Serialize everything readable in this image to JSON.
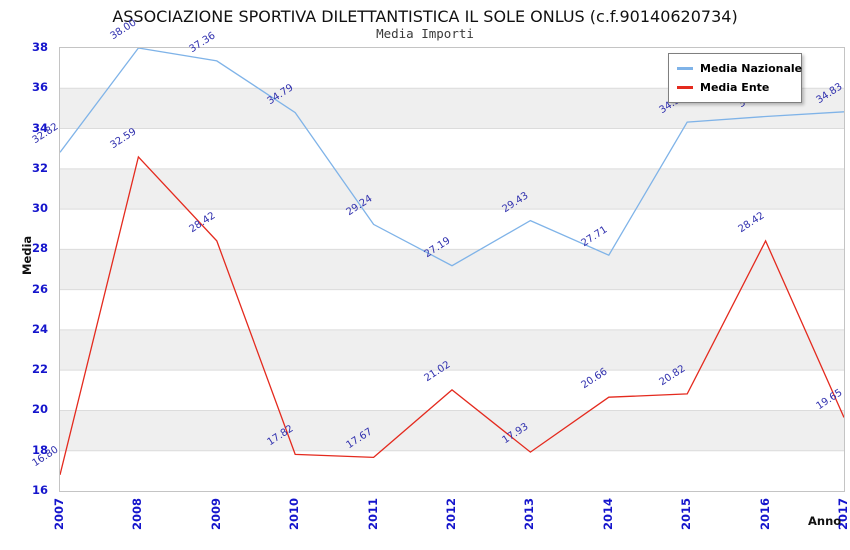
{
  "header": {
    "title": "ASSOCIAZIONE SPORTIVA DILETTANTISTICA IL SOLE ONLUS (c.f.90140620734)",
    "subtitle": "Media Importi"
  },
  "axes": {
    "xlabel": "Anno",
    "ylabel": "Media",
    "yticks": [
      "38",
      "36",
      "34",
      "32",
      "30",
      "28",
      "26",
      "24",
      "22",
      "20",
      "18",
      "16"
    ],
    "xticks": [
      "2007",
      "2008",
      "2009",
      "2010",
      "2011",
      "2012",
      "2013",
      "2014",
      "2015",
      "2016",
      "2017"
    ]
  },
  "legend": {
    "items": [
      {
        "label": "Media Nazionale",
        "color": "#7fb3e8"
      },
      {
        "label": "Media Ente",
        "color": "#e42a1e"
      }
    ]
  },
  "colors": {
    "national_line": "#7fb3e8",
    "entity_line": "#e42a1e",
    "tick_text": "#1515cc",
    "value_label_text": "#3030ae",
    "band_gray": "#efefef",
    "gridline": "#dcdcdc",
    "plot_border": "#c4c4c4"
  },
  "chart_data": {
    "type": "line",
    "title": "ASSOCIAZIONE SPORTIVA DILETTANTISTICA IL SOLE ONLUS (c.f.90140620734)",
    "subtitle": "Media Importi",
    "xlabel": "Anno",
    "ylabel": "Media",
    "categories": [
      "2007",
      "2008",
      "2009",
      "2010",
      "2011",
      "2012",
      "2013",
      "2014",
      "2015",
      "2016",
      "2017"
    ],
    "series": [
      {
        "name": "Media Nazionale",
        "color": "#7fb3e8",
        "values": [
          32.82,
          38.0,
          37.36,
          34.79,
          29.24,
          27.19,
          29.43,
          27.71,
          34.32,
          34.6,
          34.83
        ],
        "labels": [
          "32.82",
          "38.00",
          "37.36",
          "34.79",
          "29.24",
          "27.19",
          "29.43",
          "27.71",
          "34.32",
          "34.60",
          "34.83"
        ]
      },
      {
        "name": "Media Ente",
        "color": "#e42a1e",
        "values": [
          16.8,
          32.59,
          28.42,
          17.82,
          17.67,
          21.02,
          17.93,
          20.66,
          20.82,
          28.42,
          19.65
        ],
        "labels": [
          "16.80",
          "32.59",
          "28.42",
          "17.82",
          "17.67",
          "21.02",
          "17.93",
          "20.66",
          "20.82",
          "28.42",
          "19.65"
        ]
      }
    ],
    "ylim": [
      16,
      38
    ],
    "ytick_step": 2,
    "grid": "horizontal gridlines with alternating gray bands",
    "legend_position": "top-right"
  }
}
